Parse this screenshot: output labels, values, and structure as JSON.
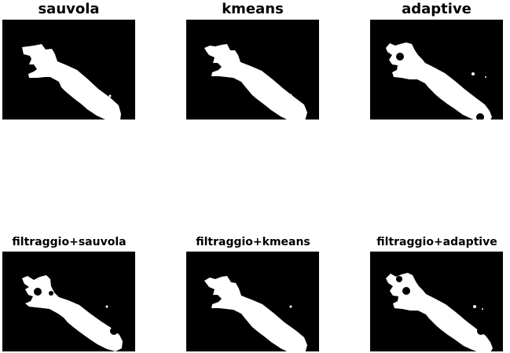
{
  "colors": {
    "background": "#ffffff",
    "panel": "#000000",
    "mask": "#ffffff",
    "text": "#000000"
  },
  "figure": {
    "panels": [
      {
        "title": "sauvola"
      },
      {
        "title": "kmeans"
      },
      {
        "title": "adaptive"
      },
      {
        "title": "filtraggio+sauvola"
      },
      {
        "title": "filtraggio+kmeans"
      },
      {
        "title": "filtraggio+adaptive"
      }
    ]
  }
}
